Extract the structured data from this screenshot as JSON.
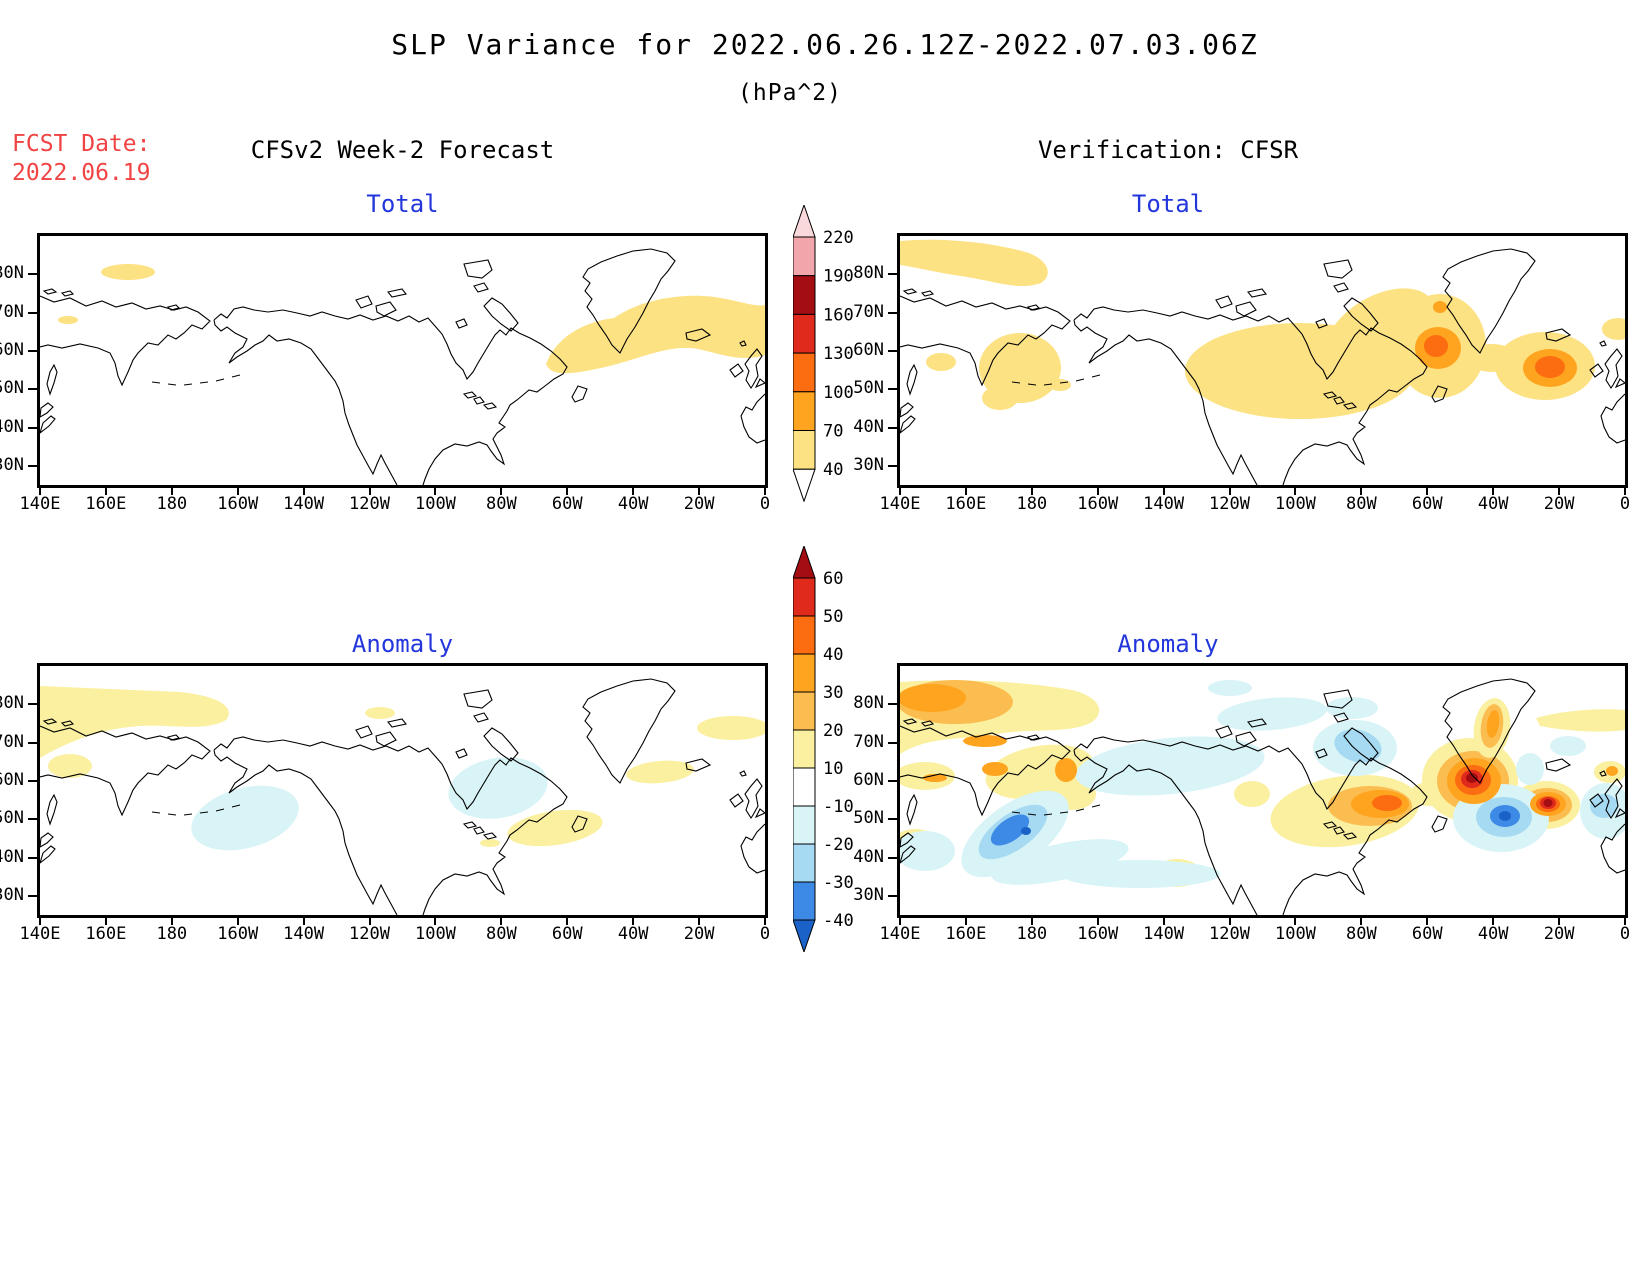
{
  "title": "SLP Variance for 2022.06.26.12Z-2022.07.03.06Z",
  "subtitle": "(hPa^2)",
  "fcst": {
    "label": "FCST Date:",
    "date": "2022.06.19"
  },
  "columns": {
    "left_header": "CFSv2 Week-2 Forecast",
    "right_header": "Verification: CFSR"
  },
  "panels": [
    {
      "id": "forecast-total",
      "title": "Total"
    },
    {
      "id": "verification-total",
      "title": "Total"
    },
    {
      "id": "forecast-anomaly",
      "title": "Anomaly"
    },
    {
      "id": "verification-anomaly",
      "title": "Anomaly"
    }
  ],
  "axis": {
    "lat_labels": [
      "80N",
      "70N",
      "60N",
      "50N",
      "40N",
      "30N"
    ],
    "lat_values": [
      80,
      70,
      60,
      50,
      40,
      30
    ],
    "lon_labels": [
      "140E",
      "160E",
      "180",
      "160W",
      "140W",
      "120W",
      "100W",
      "80W",
      "60W",
      "40W",
      "20W",
      "0"
    ]
  },
  "colorbars": {
    "total": {
      "labels": [
        "220",
        "190",
        "160",
        "130",
        "100",
        "70",
        "40"
      ],
      "segment_colors": [
        "#f2a6ac",
        "#a40d12",
        "#e02a1c",
        "#fb6d10",
        "#ffa41e",
        "#fce283"
      ],
      "arrow_top": "#fad9dc",
      "arrow_bottom": "#ffffff",
      "segment_height": 38.7
    },
    "anomaly": {
      "labels": [
        "60",
        "50",
        "40",
        "30",
        "20",
        "10",
        "-10",
        "-20",
        "-30",
        "-40"
      ],
      "segment_colors": [
        "#e02a1c",
        "#fb6d10",
        "#ffa41e",
        "#fbbc50",
        "#faf0a0",
        "#ffffff",
        "#d9f4f6",
        "#a6d9f2",
        "#3c8ae6"
      ],
      "arrow_top": "#a40d12",
      "arrow_bottom": "#1a62c8",
      "segment_height": 38
    }
  },
  "palette": {
    "total_fill_40_70": "#fce283",
    "total_fill_70_100": "#ffa41e",
    "total_fill_100_130": "#fb6d10",
    "total_fill_130_160": "#e02a1c",
    "total_fill_160_190": "#a40d12",
    "total_fill_190_220": "#f2a6ac",
    "anom_fill_10_20": "#faf0a0",
    "anom_fill_20_30": "#fbbc50",
    "anom_fill_30_40": "#ffa41e",
    "anom_fill_40_50": "#fb6d10",
    "anom_fill_50_60": "#e02a1c",
    "anom_fill_gt60": "#a40d12",
    "anom_fill_m10_m20": "#d9f4f6",
    "anom_fill_m20_m30": "#a6d9f2",
    "anom_fill_m30_m40": "#3c8ae6",
    "anom_fill_lt_m40": "#1a62c8",
    "title_blue": "#2236dc",
    "fcst_red": "#f04343"
  },
  "chart_data": {
    "type": "heatmap",
    "subtype": "filled-contour lat-lon maps, 2x2 grid",
    "units": "hPa^2",
    "title": "SLP Variance for 2022.06.26.12Z-2022.07.03.06Z",
    "lon_range": [
      "140E",
      "0"
    ],
    "lat_range": [
      "25N",
      "90N"
    ],
    "lon_ticks": [
      "140E",
      "160E",
      "180",
      "160W",
      "140W",
      "120W",
      "100W",
      "80W",
      "60W",
      "40W",
      "20W",
      "0"
    ],
    "lat_ticks": [
      "30N",
      "40N",
      "50N",
      "60N",
      "70N",
      "80N"
    ],
    "total_contour_levels": [
      40,
      70,
      100,
      130,
      160,
      190,
      220
    ],
    "anomaly_contour_levels": [
      -40,
      -30,
      -20,
      -10,
      10,
      20,
      30,
      40,
      50,
      60
    ],
    "panels": [
      {
        "title": "Total",
        "column": "CFSv2 Week-2 Forecast",
        "shaded_features": [
          {
            "region": "Arctic near 165E 80N",
            "value": "40-70"
          },
          {
            "region": "near 148E 68N",
            "value": "40-70"
          },
          {
            "region": "North Atlantic 62W-0, 50N-72N broad band",
            "value": "40-70"
          }
        ]
      },
      {
        "title": "Total",
        "column": "Verification: CFSR",
        "shaded_features": [
          {
            "region": "Arctic 140E-170W, 75N-87N arc",
            "value": "40-70"
          },
          {
            "region": "near 152E 52N",
            "value": "40-70"
          },
          {
            "region": "Bering Sea 165E-170W, 45N-62N",
            "value": "40-70"
          },
          {
            "region": "Canada and NW Atlantic 95W-0, 45N-72N broad area",
            "value": "40-70"
          },
          {
            "region": "Davis Strait / Labrador Sea ~58W 60N",
            "value": "70-130 core"
          },
          {
            "region": "NE Atlantic ~22W 55N",
            "value": "70-130 core"
          }
        ]
      },
      {
        "title": "Anomaly",
        "column": "CFSv2 Week-2 Forecast",
        "shaded_features": [
          {
            "region": "East Siberian Arctic 140E-165W, 72N-87N",
            "value": "10-20"
          },
          {
            "region": "near 150E 52N",
            "value": "10-20"
          },
          {
            "region": "Gulf of Alaska 172W-148W, 44N-58N",
            "value": "-10 to -20"
          },
          {
            "region": "Hudson Bay east / Quebec / Baffin",
            "value": "-10 to -20"
          },
          {
            "region": "Gulf of St Lawrence / Newfoundland",
            "value": "10-20"
          },
          {
            "region": "Atlantic 40W-10W ~62N",
            "value": "10-20"
          },
          {
            "region": "near 10W-0 73N",
            "value": "10-20"
          }
        ]
      },
      {
        "title": "Anomaly",
        "column": "Verification: CFSR",
        "shaded_features": [
          {
            "region": "East Siberian Arctic 140E-175E ~78N-85N",
            "value": "20-40 core in 10-20"
          },
          {
            "region": "Chukotka/Bering 160E-165W 48N-68N patches",
            "value": "10-40"
          },
          {
            "region": "NW Pacific ~175E 47N",
            "value": "-30 to -45 core"
          },
          {
            "region": "Beaufort/Chukchi and Arctic coast",
            "value": "-10 to -20"
          },
          {
            "region": "Baffin Island",
            "value": "-20 to -30"
          },
          {
            "region": "Eastern Canada / Labrador",
            "value": "30-50 core in 10-30"
          },
          {
            "region": "South Greenland ~45W 60N",
            "value": "greater than 60 core"
          },
          {
            "region": "NE Atlantic ~23W 54N",
            "value": "greater than 60 core"
          },
          {
            "region": "Mid Atlantic ~40W 50N",
            "value": "-30 to -40 core"
          },
          {
            "region": "near UK ~5W 52N",
            "value": "-20 to -30"
          },
          {
            "region": "offshore California ~135W 36N",
            "value": "10-20"
          },
          {
            "region": "N Pacific 155W-110W 30N-45N bands",
            "value": "-10 to -20"
          }
        ]
      }
    ],
    "legend_position": "two vertical colorbars center between columns",
    "grid": false
  }
}
